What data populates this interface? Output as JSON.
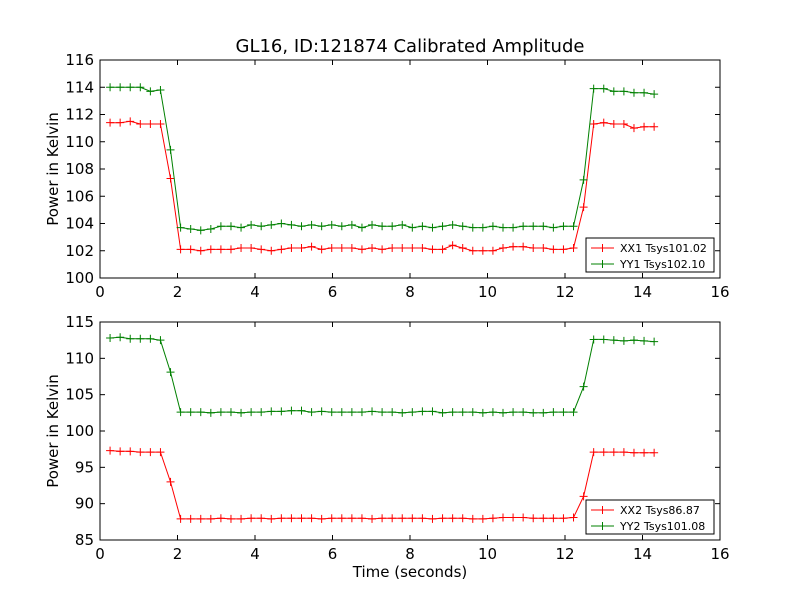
{
  "figure": {
    "title": "GL16, ID:121874 Calibrated Amplitude"
  },
  "chart_data": [
    {
      "type": "line",
      "title": "GL16, ID:121874 Calibrated Amplitude",
      "xlabel": "",
      "ylabel": "Power in Kelvin",
      "xlim": [
        0,
        16
      ],
      "ylim": [
        100,
        116
      ],
      "xticks": [
        0,
        2,
        4,
        6,
        8,
        10,
        12,
        14,
        16
      ],
      "yticks": [
        100,
        102,
        104,
        106,
        108,
        110,
        112,
        114,
        116
      ],
      "grid": false,
      "legend_position": "lower-right",
      "x": [
        0.26,
        0.52,
        0.78,
        1.04,
        1.3,
        1.56,
        1.82,
        2.08,
        2.34,
        2.6,
        2.86,
        3.12,
        3.38,
        3.64,
        3.9,
        4.16,
        4.42,
        4.68,
        4.94,
        5.2,
        5.46,
        5.72,
        5.98,
        6.24,
        6.5,
        6.76,
        7.02,
        7.28,
        7.54,
        7.8,
        8.06,
        8.32,
        8.58,
        8.84,
        9.1,
        9.36,
        9.62,
        9.88,
        10.14,
        10.4,
        10.66,
        10.92,
        11.18,
        11.44,
        11.7,
        11.96,
        12.22,
        12.48,
        12.74,
        13.0,
        13.26,
        13.52,
        13.78,
        14.04,
        14.3
      ],
      "series": [
        {
          "name": "XX1 Tsys101.02",
          "color": "#ff0000",
          "values": [
            111.4,
            111.4,
            111.5,
            111.3,
            111.3,
            111.3,
            107.3,
            102.1,
            102.1,
            102.0,
            102.1,
            102.1,
            102.1,
            102.2,
            102.2,
            102.1,
            102.0,
            102.1,
            102.2,
            102.2,
            102.3,
            102.1,
            102.2,
            102.2,
            102.2,
            102.1,
            102.2,
            102.1,
            102.2,
            102.2,
            102.2,
            102.2,
            102.1,
            102.1,
            102.4,
            102.2,
            102.0,
            102.0,
            102.0,
            102.2,
            102.3,
            102.3,
            102.2,
            102.2,
            102.1,
            102.1,
            102.2,
            105.2,
            111.3,
            111.4,
            111.3,
            111.3,
            111.0,
            111.1,
            111.1
          ]
        },
        {
          "name": "YY1 Tsys102.10",
          "color": "#008000",
          "values": [
            114.0,
            114.0,
            114.0,
            114.0,
            113.7,
            113.8,
            109.4,
            103.7,
            103.6,
            103.5,
            103.6,
            103.8,
            103.8,
            103.7,
            103.9,
            103.8,
            103.9,
            104.0,
            103.9,
            103.8,
            103.9,
            103.8,
            103.9,
            103.8,
            103.9,
            103.7,
            103.9,
            103.8,
            103.8,
            103.9,
            103.7,
            103.8,
            103.7,
            103.8,
            103.9,
            103.8,
            103.7,
            103.7,
            103.8,
            103.7,
            103.7,
            103.8,
            103.8,
            103.8,
            103.7,
            103.8,
            103.8,
            107.2,
            113.9,
            113.9,
            113.7,
            113.7,
            113.6,
            113.6,
            113.5
          ]
        }
      ]
    },
    {
      "type": "line",
      "title": "",
      "xlabel": "Time (seconds)",
      "ylabel": "Power in Kelvin",
      "xlim": [
        0,
        16
      ],
      "ylim": [
        85,
        115
      ],
      "xticks": [
        0,
        2,
        4,
        6,
        8,
        10,
        12,
        14,
        16
      ],
      "yticks": [
        85,
        90,
        95,
        100,
        105,
        110,
        115
      ],
      "grid": false,
      "legend_position": "lower-right",
      "x": [
        0.26,
        0.52,
        0.78,
        1.04,
        1.3,
        1.56,
        1.82,
        2.08,
        2.34,
        2.6,
        2.86,
        3.12,
        3.38,
        3.64,
        3.9,
        4.16,
        4.42,
        4.68,
        4.94,
        5.2,
        5.46,
        5.72,
        5.98,
        6.24,
        6.5,
        6.76,
        7.02,
        7.28,
        7.54,
        7.8,
        8.06,
        8.32,
        8.58,
        8.84,
        9.1,
        9.36,
        9.62,
        9.88,
        10.14,
        10.4,
        10.66,
        10.92,
        11.18,
        11.44,
        11.7,
        11.96,
        12.22,
        12.48,
        12.74,
        13.0,
        13.26,
        13.52,
        13.78,
        14.04,
        14.3
      ],
      "series": [
        {
          "name": "XX2 Tsys86.87",
          "color": "#ff0000",
          "values": [
            97.3,
            97.2,
            97.2,
            97.1,
            97.1,
            97.1,
            93.0,
            87.9,
            87.9,
            87.9,
            87.9,
            88.0,
            87.9,
            87.9,
            88.0,
            88.0,
            87.9,
            88.0,
            88.0,
            88.0,
            88.0,
            87.9,
            88.0,
            88.0,
            88.0,
            88.0,
            87.9,
            88.0,
            88.0,
            88.0,
            88.0,
            88.0,
            87.9,
            88.0,
            88.0,
            88.0,
            87.9,
            87.9,
            88.0,
            88.1,
            88.1,
            88.1,
            88.0,
            88.0,
            88.0,
            88.0,
            88.1,
            91.0,
            97.1,
            97.1,
            97.1,
            97.1,
            97.0,
            97.0,
            97.0
          ]
        },
        {
          "name": "YY2 Tsys101.08",
          "color": "#008000",
          "values": [
            112.8,
            112.9,
            112.7,
            112.7,
            112.7,
            112.5,
            108.1,
            102.6,
            102.6,
            102.6,
            102.5,
            102.6,
            102.6,
            102.5,
            102.6,
            102.6,
            102.7,
            102.7,
            102.8,
            102.8,
            102.6,
            102.7,
            102.6,
            102.6,
            102.6,
            102.6,
            102.7,
            102.6,
            102.6,
            102.5,
            102.6,
            102.7,
            102.7,
            102.5,
            102.6,
            102.6,
            102.6,
            102.5,
            102.6,
            102.5,
            102.6,
            102.6,
            102.5,
            102.5,
            102.6,
            102.6,
            102.6,
            106.1,
            112.6,
            112.6,
            112.5,
            112.4,
            112.5,
            112.4,
            112.3
          ]
        }
      ]
    }
  ]
}
